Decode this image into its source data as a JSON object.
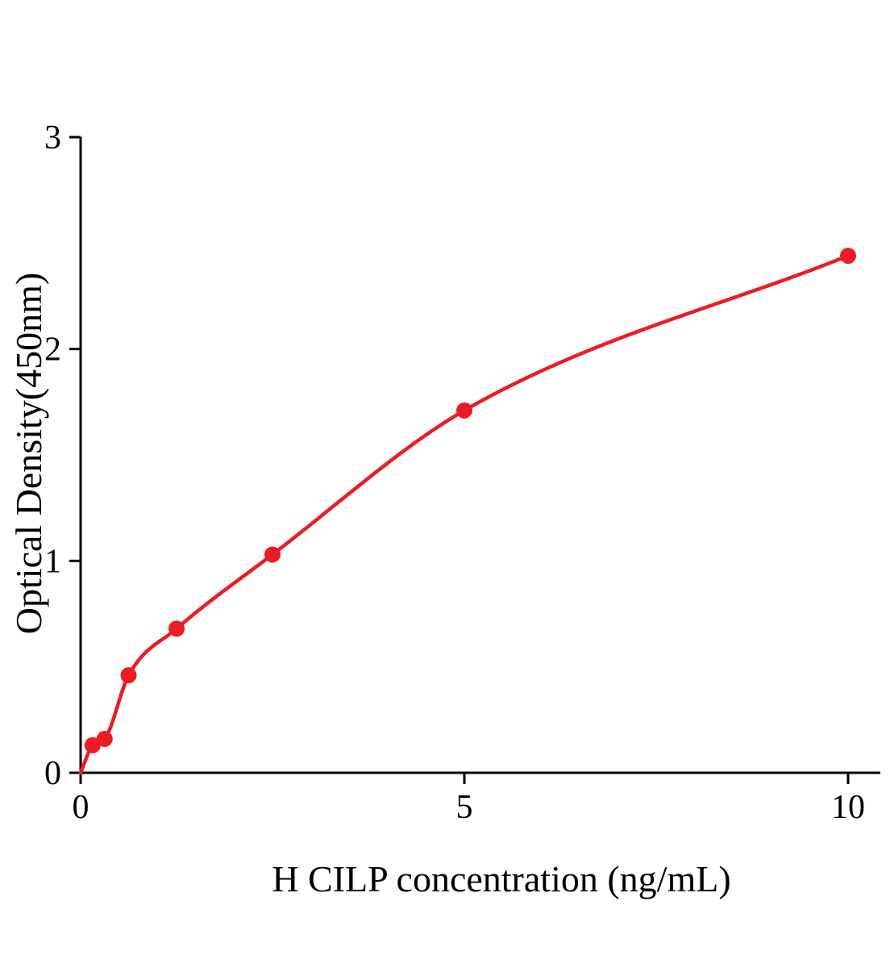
{
  "chart_data": {
    "type": "scatter",
    "title": "",
    "xlabel": "H CILP concentration (ng/mL)",
    "ylabel": "Optical Density(450nm)",
    "x": [
      0.156,
      0.313,
      0.625,
      1.25,
      2.5,
      5,
      10
    ],
    "y": [
      0.13,
      0.16,
      0.46,
      0.68,
      1.03,
      1.71,
      2.44
    ],
    "xlim": [
      0,
      10
    ],
    "ylim": [
      0,
      3
    ],
    "xticks": [
      0,
      5,
      10
    ],
    "yticks": [
      0,
      1,
      2,
      3
    ],
    "grid": false,
    "legend": false,
    "curve": "smooth fit through origin",
    "point_color": "#ec1c24",
    "line_color": "#ec1c24",
    "axis_color": "#000000",
    "background": "#ffffff"
  }
}
